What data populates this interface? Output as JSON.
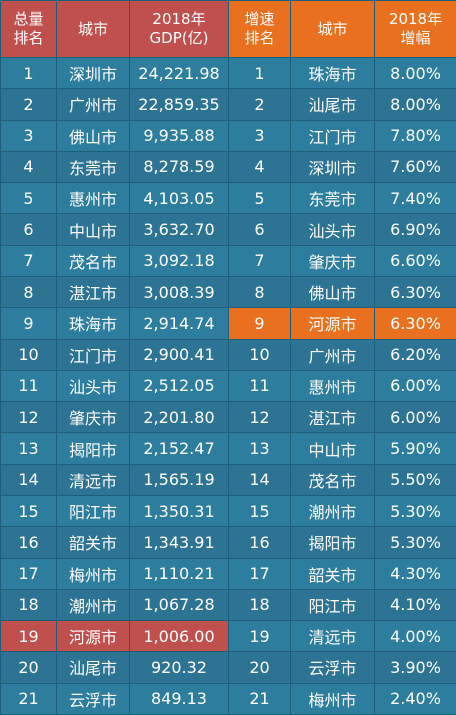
{
  "headers": {
    "rank": "总量\n排名",
    "city": "城市",
    "gdp": "2018年\nGDP(亿)",
    "growth_rank": "增速\n排名",
    "growth_city": "城市",
    "growth": "2018年\n增幅"
  },
  "rows": [
    {
      "rank": "1",
      "city": "深圳市",
      "gdp": "24,221.98",
      "growth_rank": "1",
      "growth_city": "珠海市",
      "growth": "8.00%"
    },
    {
      "rank": "2",
      "city": "广州市",
      "gdp": "22,859.35",
      "growth_rank": "2",
      "growth_city": "汕尾市",
      "growth": "8.00%"
    },
    {
      "rank": "3",
      "city": "佛山市",
      "gdp": "9,935.88",
      "growth_rank": "3",
      "growth_city": "江门市",
      "growth": "7.80%"
    },
    {
      "rank": "4",
      "city": "东莞市",
      "gdp": "8,278.59",
      "growth_rank": "4",
      "growth_city": "深圳市",
      "growth": "7.60%"
    },
    {
      "rank": "5",
      "city": "惠州市",
      "gdp": "4,103.05",
      "growth_rank": "5",
      "growth_city": "东莞市",
      "growth": "7.40%"
    },
    {
      "rank": "6",
      "city": "中山市",
      "gdp": "3,632.70",
      "growth_rank": "6",
      "growth_city": "汕头市",
      "growth": "6.90%"
    },
    {
      "rank": "7",
      "city": "茂名市",
      "gdp": "3,092.18",
      "growth_rank": "7",
      "growth_city": "肇庆市",
      "growth": "6.60%"
    },
    {
      "rank": "8",
      "city": "湛江市",
      "gdp": "3,008.39",
      "growth_rank": "8",
      "growth_city": "佛山市",
      "growth": "6.30%"
    },
    {
      "rank": "9",
      "city": "珠海市",
      "gdp": "2,914.74",
      "growth_rank": "9",
      "growth_city": "河源市",
      "growth": "6.30%"
    },
    {
      "rank": "10",
      "city": "江门市",
      "gdp": "2,900.41",
      "growth_rank": "10",
      "growth_city": "广州市",
      "growth": "6.20%"
    },
    {
      "rank": "11",
      "city": "汕头市",
      "gdp": "2,512.05",
      "growth_rank": "11",
      "growth_city": "惠州市",
      "growth": "6.00%"
    },
    {
      "rank": "12",
      "city": "肇庆市",
      "gdp": "2,201.80",
      "growth_rank": "12",
      "growth_city": "湛江市",
      "growth": "6.00%"
    },
    {
      "rank": "13",
      "city": "揭阳市",
      "gdp": "2,152.47",
      "growth_rank": "13",
      "growth_city": "中山市",
      "growth": "5.90%"
    },
    {
      "rank": "14",
      "city": "清远市",
      "gdp": "1,565.19",
      "growth_rank": "14",
      "growth_city": "茂名市",
      "growth": "5.50%"
    },
    {
      "rank": "15",
      "city": "阳江市",
      "gdp": "1,350.31",
      "growth_rank": "15",
      "growth_city": "潮州市",
      "growth": "5.30%"
    },
    {
      "rank": "16",
      "city": "韶关市",
      "gdp": "1,343.91",
      "growth_rank": "16",
      "growth_city": "揭阳市",
      "growth": "5.30%"
    },
    {
      "rank": "17",
      "city": "梅州市",
      "gdp": "1,110.21",
      "growth_rank": "17",
      "growth_city": "韶关市",
      "growth": "4.30%"
    },
    {
      "rank": "18",
      "city": "潮州市",
      "gdp": "1,067.28",
      "growth_rank": "18",
      "growth_city": "阳江市",
      "growth": "4.10%"
    },
    {
      "rank": "19",
      "city": "河源市",
      "gdp": "1,006.00",
      "growth_rank": "19",
      "growth_city": "清远市",
      "growth": "4.00%"
    },
    {
      "rank": "20",
      "city": "汕尾市",
      "gdp": "920.32",
      "growth_rank": "20",
      "growth_city": "云浮市",
      "growth": "3.90%"
    },
    {
      "rank": "21",
      "city": "云浮市",
      "gdp": "849.13",
      "growth_rank": "21",
      "growth_city": "梅州市",
      "growth": "2.40%"
    }
  ],
  "highlights": {
    "gdp_rank_row_index": 18,
    "gdp_rank_color": "#c0504d",
    "growth_rank_row_index": 8,
    "growth_rank_color": "#e9701f"
  },
  "colors": {
    "background": "#2a7a9a",
    "header_left": "#c0504d",
    "header_right": "#e9701f",
    "text": "#ffffff"
  }
}
